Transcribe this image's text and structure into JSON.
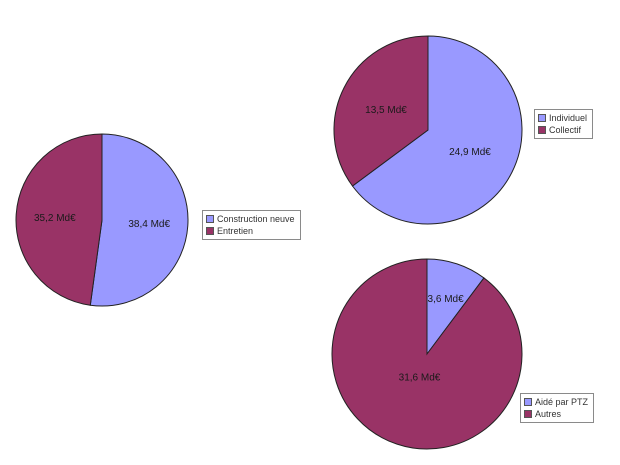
{
  "colors": {
    "blue": "#9999ff",
    "maroon": "#993366",
    "outline": "#222222"
  },
  "chart_data": [
    {
      "type": "pie",
      "slices": [
        {
          "label": "Construction neuve",
          "value": 38.4,
          "value_label": "38,4 Md€",
          "color": "#9999ff"
        },
        {
          "label": "Entretien",
          "value": 35.2,
          "value_label": "35,2 Md€",
          "color": "#993366"
        }
      ],
      "legend_position": "right"
    },
    {
      "type": "pie",
      "slices": [
        {
          "label": "Individuel",
          "value": 24.9,
          "value_label": "24,9 Md€",
          "color": "#9999ff"
        },
        {
          "label": "Collectif",
          "value": 13.5,
          "value_label": "13,5 Md€",
          "color": "#993366"
        }
      ],
      "legend_position": "right"
    },
    {
      "type": "pie",
      "slices": [
        {
          "label": "Aidé par PTZ",
          "value": 3.6,
          "value_label": "3,6 Md€",
          "color": "#9999ff"
        },
        {
          "label": "Autres",
          "value": 31.6,
          "value_label": "31,6 Md€",
          "color": "#993366"
        }
      ],
      "legend_position": "bottom-right"
    }
  ]
}
